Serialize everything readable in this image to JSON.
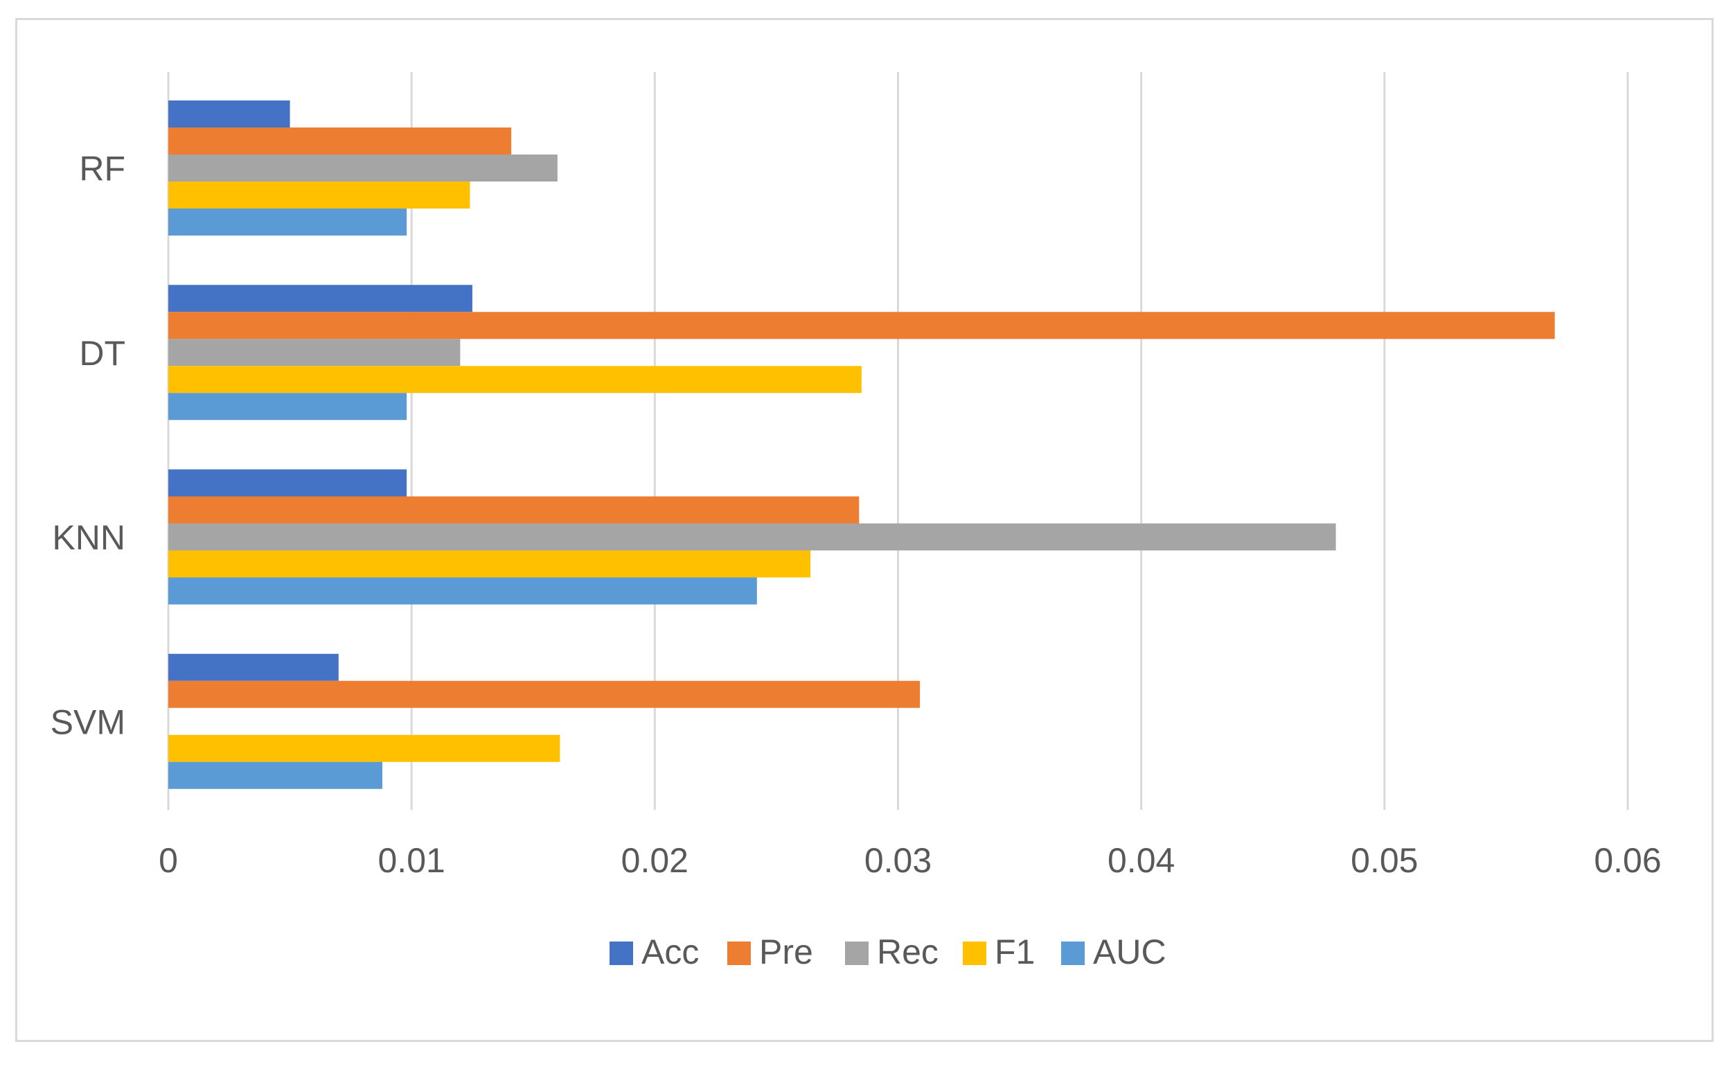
{
  "chart_data": {
    "type": "bar",
    "orientation": "horizontal",
    "title": "",
    "xlabel": "",
    "ylabel": "",
    "categories": [
      "RF",
      "DT",
      "KNN",
      "SVM"
    ],
    "series": [
      {
        "name": "Acc",
        "color": "#4472C4",
        "values": [
          0.005,
          0.0125,
          0.0098,
          0.007
        ]
      },
      {
        "name": "Pre",
        "color": "#ED7D31",
        "values": [
          0.0141,
          0.057,
          0.0284,
          0.0309
        ]
      },
      {
        "name": "Rec",
        "color": "#A5A5A5",
        "values": [
          0.016,
          0.012,
          0.048,
          0
        ]
      },
      {
        "name": "F1",
        "color": "#FFC000",
        "values": [
          0.0124,
          0.0285,
          0.0264,
          0.0161
        ]
      },
      {
        "name": "AUC",
        "color": "#5B9BD5",
        "values": [
          0.0098,
          0.0098,
          0.0242,
          0.0088
        ]
      }
    ],
    "xlim": [
      0,
      0.06
    ],
    "x_ticks": [
      "0",
      "0.01",
      "0.02",
      "0.03",
      "0.04",
      "0.05",
      "0.06"
    ],
    "grid": true,
    "gridline_color": "#d9d9d9",
    "legend_position": "bottom"
  }
}
